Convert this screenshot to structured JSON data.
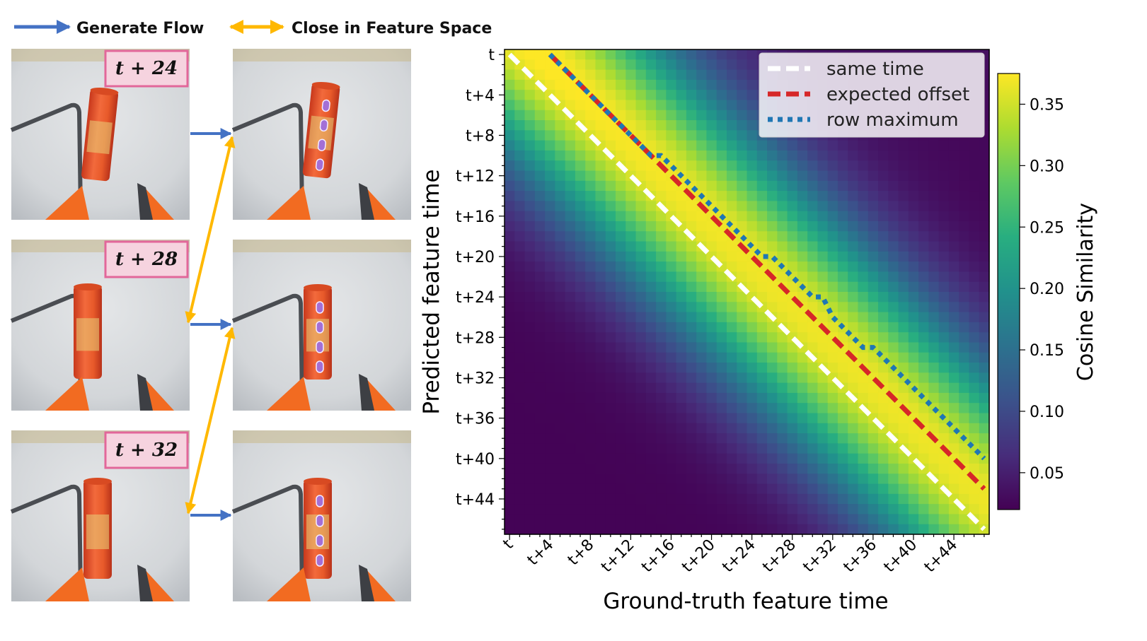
{
  "legend_top": {
    "generate_flow": "Generate Flow",
    "close_in_feature_space": "Close in Feature Space",
    "colors": {
      "generate": "#4472c4",
      "close": "#ffb800"
    }
  },
  "frames": [
    {
      "time_label": "t + 24"
    },
    {
      "time_label": "t + 28"
    },
    {
      "time_label": "t + 32"
    }
  ],
  "chart_data": {
    "type": "heatmap",
    "xlabel": "Ground-truth feature time",
    "ylabel": "Predicted feature time",
    "x_tick_labels": [
      "t",
      "t+4",
      "t+8",
      "t+12",
      "t+16",
      "t+20",
      "t+24",
      "t+28",
      "t+32",
      "t+36",
      "t+40",
      "t+44"
    ],
    "y_tick_labels": [
      "t",
      "t+4",
      "t+8",
      "t+12",
      "t+16",
      "t+20",
      "t+24",
      "t+28",
      "t+32",
      "t+36",
      "t+40",
      "t+44"
    ],
    "n_steps": 48,
    "tick_every": 4,
    "colormap": "viridis",
    "colorbar": {
      "label": "Cosine Similarity",
      "range": [
        0.02,
        0.375
      ],
      "ticks": [
        0.05,
        0.1,
        0.15,
        0.2,
        0.25,
        0.3,
        0.35
      ],
      "tick_labels": [
        "0.05",
        "0.10",
        "0.15",
        "0.20",
        "0.25",
        "0.30",
        "0.35"
      ]
    },
    "series": [
      {
        "name": "same time",
        "style": "dashed",
        "color": "#ffffff",
        "offset": 0
      },
      {
        "name": "expected offset",
        "style": "dashed",
        "color": "#d62728",
        "offset": 4
      },
      {
        "name": "row maximum",
        "style": "dotted",
        "color": "#1f77b4",
        "points": [
          [
            4,
            0
          ],
          [
            5,
            1
          ],
          [
            7,
            3
          ],
          [
            8,
            4
          ],
          [
            10,
            6
          ],
          [
            11,
            7
          ],
          [
            13,
            9
          ],
          [
            14,
            10
          ],
          [
            15,
            10
          ],
          [
            16,
            11
          ],
          [
            17,
            12
          ],
          [
            18,
            13
          ],
          [
            19,
            14
          ],
          [
            20,
            15
          ],
          [
            21,
            16
          ],
          [
            22,
            17
          ],
          [
            23,
            18
          ],
          [
            24,
            19
          ],
          [
            25,
            20
          ],
          [
            26,
            20
          ],
          [
            27,
            21
          ],
          [
            28,
            22
          ],
          [
            29,
            23
          ],
          [
            30,
            24
          ],
          [
            31,
            24
          ],
          [
            32,
            26
          ],
          [
            33,
            27
          ],
          [
            34,
            28
          ],
          [
            35,
            29
          ],
          [
            36,
            29
          ],
          [
            37,
            30
          ],
          [
            38,
            31
          ],
          [
            39,
            32
          ],
          [
            40,
            33
          ],
          [
            41,
            34
          ],
          [
            42,
            35
          ],
          [
            43,
            36
          ],
          [
            44,
            37
          ],
          [
            45,
            38
          ],
          [
            46,
            39
          ],
          [
            47,
            40
          ]
        ]
      }
    ],
    "legend_position": "top-right",
    "grid": false
  }
}
